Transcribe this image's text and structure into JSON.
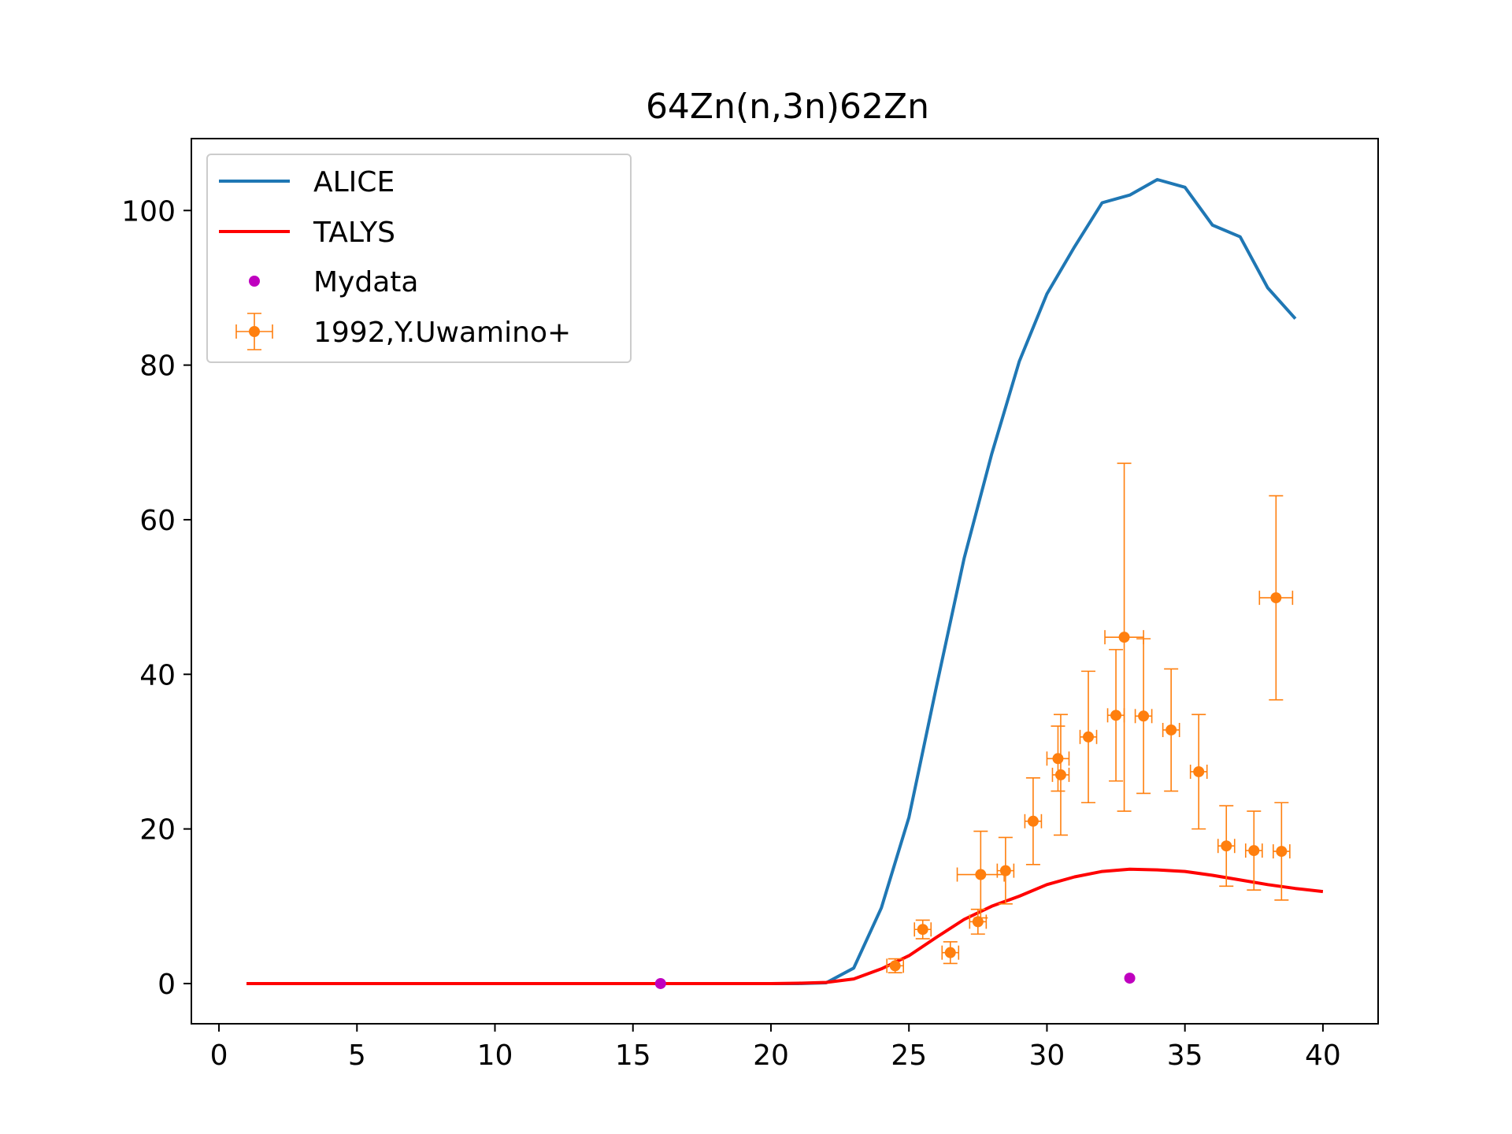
{
  "chart_data": {
    "type": "line",
    "title": "64Zn(n,3n)62Zn",
    "xlabel": "",
    "ylabel": "",
    "xlim": [
      -1,
      42
    ],
    "ylim": [
      -5.2,
      109.3
    ],
    "xticks": [
      0,
      5,
      10,
      15,
      20,
      25,
      30,
      35,
      40
    ],
    "yticks": [
      0,
      20,
      40,
      60,
      80,
      100
    ],
    "grid": false,
    "legend_position": "upper-left",
    "series": [
      {
        "name": "ALICE",
        "type": "line",
        "color": "#1f77b4",
        "x": [
          1,
          2,
          3,
          4,
          5,
          6,
          7,
          8,
          9,
          10,
          11,
          12,
          13,
          14,
          15,
          16,
          17,
          18,
          19,
          20,
          21,
          22,
          23,
          24,
          25,
          26,
          27,
          28,
          29,
          30,
          31,
          32,
          33,
          34,
          35,
          36,
          37,
          38,
          39
        ],
        "y": [
          0,
          0,
          0,
          0,
          0,
          0,
          0,
          0,
          0,
          0,
          0,
          0,
          0,
          0,
          0,
          0,
          0,
          0,
          0,
          0,
          0,
          0.1,
          2.0,
          9.8,
          21.5,
          38.5,
          55.0,
          68.5,
          80.5,
          89.2,
          95.3,
          101.0,
          102.0,
          104.0,
          103.0,
          98.1,
          96.6,
          90.0,
          86.0
        ]
      },
      {
        "name": "TALYS",
        "type": "line",
        "color": "#ff0000",
        "x": [
          1,
          2,
          3,
          4,
          5,
          6,
          7,
          8,
          9,
          10,
          11,
          12,
          13,
          14,
          15,
          16,
          17,
          18,
          19,
          20,
          21,
          22,
          23,
          24,
          25,
          26,
          27,
          28,
          29,
          30,
          31,
          32,
          33,
          34,
          35,
          36,
          37,
          38,
          39,
          40
        ],
        "y": [
          0,
          0,
          0,
          0,
          0,
          0,
          0,
          0,
          0,
          0,
          0,
          0,
          0,
          0,
          0,
          0,
          0,
          0,
          0,
          0,
          0.05,
          0.15,
          0.6,
          1.9,
          3.6,
          6.0,
          8.3,
          10.0,
          11.3,
          12.8,
          13.8,
          14.5,
          14.8,
          14.7,
          14.5,
          14.0,
          13.4,
          12.8,
          12.3,
          11.9
        ]
      },
      {
        "name": "Mydata",
        "type": "scatter",
        "color": "#bf00bf",
        "x": [
          16,
          33
        ],
        "y": [
          0,
          0.7
        ]
      },
      {
        "name": "1992,Y.Uwamino+",
        "type": "errorbar",
        "color": "#ff7f0e",
        "points": [
          {
            "x": 24.5,
            "y": 2.3,
            "xerr": 0.3,
            "yerr": 0.9
          },
          {
            "x": 25.5,
            "y": 7.0,
            "xerr": 0.3,
            "yerr": 1.2
          },
          {
            "x": 26.5,
            "y": 4.0,
            "xerr": 0.3,
            "yerr": 1.4
          },
          {
            "x": 27.5,
            "y": 8.0,
            "xerr": 0.3,
            "yerr": 1.6
          },
          {
            "x": 27.6,
            "y": 14.1,
            "xerr": 0.85,
            "yerr": 5.6
          },
          {
            "x": 28.5,
            "y": 14.6,
            "xerr": 0.3,
            "yerr": 4.3
          },
          {
            "x": 29.5,
            "y": 21.0,
            "xerr": 0.3,
            "yerr": 5.6
          },
          {
            "x": 30.4,
            "y": 29.1,
            "xerr": 0.4,
            "yerr": 4.2
          },
          {
            "x": 30.5,
            "y": 27.0,
            "xerr": 0.3,
            "yerr": 7.8
          },
          {
            "x": 31.5,
            "y": 31.9,
            "xerr": 0.3,
            "yerr": 8.5
          },
          {
            "x": 32.5,
            "y": 34.7,
            "xerr": 0.3,
            "yerr": 8.5
          },
          {
            "x": 32.8,
            "y": 44.8,
            "xerr": 0.7,
            "yerr": 22.5
          },
          {
            "x": 33.5,
            "y": 34.6,
            "xerr": 0.3,
            "yerr": 10.0
          },
          {
            "x": 34.5,
            "y": 32.8,
            "xerr": 0.3,
            "yerr": 7.9
          },
          {
            "x": 35.5,
            "y": 27.4,
            "xerr": 0.3,
            "yerr": 7.4
          },
          {
            "x": 36.5,
            "y": 17.8,
            "xerr": 0.3,
            "yerr": 5.2
          },
          {
            "x": 37.5,
            "y": 17.2,
            "xerr": 0.3,
            "yerr": 5.1
          },
          {
            "x": 38.5,
            "y": 17.1,
            "xerr": 0.3,
            "yerr": 6.3
          },
          {
            "x": 38.3,
            "y": 49.9,
            "xerr": 0.6,
            "yerr": 13.2
          }
        ]
      }
    ]
  }
}
